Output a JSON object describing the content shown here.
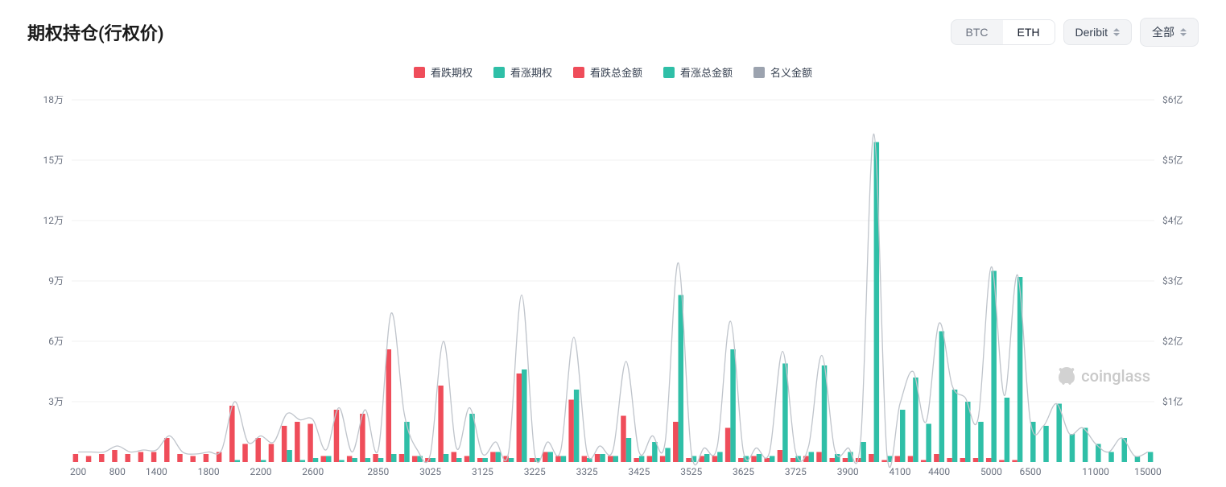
{
  "title": "期权持仓(行权价)",
  "controls": {
    "asset": {
      "options": [
        "BTC",
        "ETH"
      ],
      "selected": "ETH"
    },
    "exchange": {
      "label": "Deribit"
    },
    "scope": {
      "label": "全部"
    }
  },
  "legend": [
    {
      "label": "看跌期权",
      "color": "#ef4d5a"
    },
    {
      "label": "看涨期权",
      "color": "#2fbfa7"
    },
    {
      "label": "看跌总金额",
      "color": "#ef4d5a"
    },
    {
      "label": "看涨总金额",
      "color": "#2fbfa7"
    },
    {
      "label": "名义金额",
      "color": "#9ca3af"
    }
  ],
  "watermark": "coinglass",
  "chart": {
    "type": "bar+line",
    "background_color": "#ffffff",
    "grid_color": "#f0f0f0",
    "axis_label_color": "#6b7280",
    "axis_font_size": 12,
    "bar_gap": 0,
    "y_left": {
      "min": 0,
      "max": 18,
      "step": 3,
      "suffix": "万",
      "ticks": [
        3,
        6,
        9,
        12,
        15,
        18
      ]
    },
    "y_right": {
      "min": 0,
      "max": 6,
      "step": 1,
      "prefix": "$",
      "suffix": "亿",
      "ticks": [
        1,
        2,
        3,
        4,
        5,
        6
      ]
    },
    "x_tick_labels": [
      "200",
      "800",
      "1400",
      "1800",
      "2200",
      "2600",
      "2850",
      "3025",
      "3125",
      "3225",
      "3325",
      "3425",
      "3525",
      "3625",
      "3725",
      "3900",
      "4100",
      "4400",
      "5000",
      "6500",
      "11000",
      "15000"
    ],
    "colors": {
      "put": "#ef4d5a",
      "call": "#2fbfa7",
      "line": "#bfc4cb"
    },
    "series": [
      {
        "x": "200",
        "put": 0.4,
        "call": 0.0,
        "nominal": 0.5
      },
      {
        "x": "400",
        "put": 0.3,
        "call": 0.0,
        "nominal": 0.5
      },
      {
        "x": "600",
        "put": 0.4,
        "call": 0.0,
        "nominal": 0.5
      },
      {
        "x": "800",
        "put": 0.6,
        "call": 0.0,
        "nominal": 0.8
      },
      {
        "x": "1000",
        "put": 0.4,
        "call": 0.0,
        "nominal": 0.5
      },
      {
        "x": "1200",
        "put": 0.5,
        "call": 0.0,
        "nominal": 0.6
      },
      {
        "x": "1400",
        "put": 0.5,
        "call": 0.0,
        "nominal": 0.6
      },
      {
        "x": "1500",
        "put": 1.2,
        "call": 0.0,
        "nominal": 1.3
      },
      {
        "x": "1600",
        "put": 0.4,
        "call": 0.0,
        "nominal": 0.5
      },
      {
        "x": "1700",
        "put": 0.3,
        "call": 0.0,
        "nominal": 0.4
      },
      {
        "x": "1800",
        "put": 0.4,
        "call": 0.0,
        "nominal": 0.5
      },
      {
        "x": "1900",
        "put": 0.5,
        "call": 0.0,
        "nominal": 0.6
      },
      {
        "x": "2000",
        "put": 2.8,
        "call": 0.1,
        "nominal": 3.0
      },
      {
        "x": "2100",
        "put": 0.9,
        "call": 0.0,
        "nominal": 1.0
      },
      {
        "x": "2200",
        "put": 1.2,
        "call": 0.1,
        "nominal": 1.3
      },
      {
        "x": "2300",
        "put": 0.9,
        "call": 0.0,
        "nominal": 1.0
      },
      {
        "x": "2400",
        "put": 1.8,
        "call": 0.6,
        "nominal": 2.4
      },
      {
        "x": "2500",
        "put": 2.0,
        "call": 0.1,
        "nominal": 2.1
      },
      {
        "x": "2600",
        "put": 1.9,
        "call": 0.2,
        "nominal": 2.1
      },
      {
        "x": "2650",
        "put": 0.3,
        "call": 0.3,
        "nominal": 0.6
      },
      {
        "x": "2700",
        "put": 2.6,
        "call": 0.1,
        "nominal": 2.7
      },
      {
        "x": "2750",
        "put": 0.3,
        "call": 0.2,
        "nominal": 0.5
      },
      {
        "x": "2800",
        "put": 2.4,
        "call": 0.2,
        "nominal": 2.6
      },
      {
        "x": "2850",
        "put": 0.4,
        "call": 0.2,
        "nominal": 0.6
      },
      {
        "x": "2900",
        "put": 5.6,
        "call": 0.4,
        "nominal": 7.4
      },
      {
        "x": "2950",
        "put": 0.4,
        "call": 2.0,
        "nominal": 2.4
      },
      {
        "x": "3000",
        "put": 0.3,
        "call": 0.3,
        "nominal": 0.6
      },
      {
        "x": "3025",
        "put": 0.2,
        "call": 0.2,
        "nominal": 0.4
      },
      {
        "x": "3050",
        "put": 3.8,
        "call": 0.4,
        "nominal": 6.0
      },
      {
        "x": "3075",
        "put": 0.5,
        "call": 0.2,
        "nominal": 0.7
      },
      {
        "x": "3100",
        "put": 0.3,
        "call": 2.4,
        "nominal": 2.7
      },
      {
        "x": "3125",
        "put": 0.2,
        "call": 0.2,
        "nominal": 0.4
      },
      {
        "x": "3150",
        "put": 0.5,
        "call": 0.5,
        "nominal": 1.0
      },
      {
        "x": "3175",
        "put": 0.3,
        "call": 0.2,
        "nominal": 0.5
      },
      {
        "x": "3200",
        "put": 4.4,
        "call": 4.6,
        "nominal": 8.3
      },
      {
        "x": "3225",
        "put": 0.2,
        "call": 0.2,
        "nominal": 0.4
      },
      {
        "x": "3250",
        "put": 0.5,
        "call": 0.5,
        "nominal": 1.0
      },
      {
        "x": "3275",
        "put": 0.3,
        "call": 0.3,
        "nominal": 0.6
      },
      {
        "x": "3300",
        "put": 3.1,
        "call": 3.6,
        "nominal": 6.2
      },
      {
        "x": "3325",
        "put": 0.3,
        "call": 0.2,
        "nominal": 0.5
      },
      {
        "x": "3350",
        "put": 0.4,
        "call": 0.4,
        "nominal": 0.8
      },
      {
        "x": "3375",
        "put": 0.3,
        "call": 0.3,
        "nominal": 0.6
      },
      {
        "x": "3400",
        "put": 2.3,
        "call": 1.2,
        "nominal": 5.0
      },
      {
        "x": "3425",
        "put": 0.2,
        "call": 0.3,
        "nominal": 0.5
      },
      {
        "x": "3450",
        "put": 0.3,
        "call": 1.0,
        "nominal": 1.3
      },
      {
        "x": "3475",
        "put": 0.3,
        "call": 0.7,
        "nominal": 1.0
      },
      {
        "x": "3500",
        "put": 2.0,
        "call": 8.3,
        "nominal": 9.9
      },
      {
        "x": "3525",
        "put": 0.2,
        "call": 0.3,
        "nominal": 0.5
      },
      {
        "x": "3550",
        "put": 0.3,
        "call": 0.4,
        "nominal": 0.7
      },
      {
        "x": "3575",
        "put": 0.3,
        "call": 0.5,
        "nominal": 0.8
      },
      {
        "x": "3600",
        "put": 1.7,
        "call": 5.6,
        "nominal": 7.0
      },
      {
        "x": "3625",
        "put": 0.2,
        "call": 0.3,
        "nominal": 0.5
      },
      {
        "x": "3650",
        "put": 0.3,
        "call": 0.4,
        "nominal": 0.7
      },
      {
        "x": "3675",
        "put": 0.2,
        "call": 0.3,
        "nominal": 0.5
      },
      {
        "x": "3700",
        "put": 0.6,
        "call": 4.9,
        "nominal": 5.5
      },
      {
        "x": "3725",
        "put": 0.2,
        "call": 0.3,
        "nominal": 0.5
      },
      {
        "x": "3750",
        "put": 0.3,
        "call": 0.5,
        "nominal": 0.8
      },
      {
        "x": "3800",
        "put": 0.5,
        "call": 4.8,
        "nominal": 5.3
      },
      {
        "x": "3850",
        "put": 0.2,
        "call": 0.4,
        "nominal": 0.6
      },
      {
        "x": "3900",
        "put": 0.2,
        "call": 0.5,
        "nominal": 0.7
      },
      {
        "x": "3950",
        "put": 0.2,
        "call": 1.0,
        "nominal": 1.2
      },
      {
        "x": "4000",
        "put": 0.4,
        "call": 15.9,
        "nominal": 16.3
      },
      {
        "x": "4050",
        "put": 0.1,
        "call": 0.3,
        "nominal": 0.4
      },
      {
        "x": "4100",
        "put": 0.3,
        "call": 2.6,
        "nominal": 2.9
      },
      {
        "x": "4200",
        "put": 0.3,
        "call": 4.2,
        "nominal": 4.5
      },
      {
        "x": "4300",
        "put": 0.1,
        "call": 1.9,
        "nominal": 2.0
      },
      {
        "x": "4400",
        "put": 0.4,
        "call": 6.5,
        "nominal": 6.9
      },
      {
        "x": "4500",
        "put": 0.2,
        "call": 3.6,
        "nominal": 3.8
      },
      {
        "x": "4600",
        "put": 0.2,
        "call": 3.0,
        "nominal": 3.2
      },
      {
        "x": "4800",
        "put": 0.2,
        "call": 2.0,
        "nominal": 2.2
      },
      {
        "x": "5000",
        "put": 0.2,
        "call": 9.5,
        "nominal": 9.7
      },
      {
        "x": "5500",
        "put": 0.1,
        "call": 3.2,
        "nominal": 3.3
      },
      {
        "x": "6000",
        "put": 0.1,
        "call": 9.2,
        "nominal": 9.3
      },
      {
        "x": "6500",
        "put": 0.0,
        "call": 2.0,
        "nominal": 2.0
      },
      {
        "x": "7000",
        "put": 0.0,
        "call": 1.8,
        "nominal": 1.8
      },
      {
        "x": "8000",
        "put": 0.0,
        "call": 2.9,
        "nominal": 2.9
      },
      {
        "x": "9000",
        "put": 0.0,
        "call": 1.4,
        "nominal": 1.4
      },
      {
        "x": "10000",
        "put": 0.0,
        "call": 1.7,
        "nominal": 1.7
      },
      {
        "x": "11000",
        "put": 0.0,
        "call": 0.9,
        "nominal": 0.9
      },
      {
        "x": "12000",
        "put": 0.0,
        "call": 0.5,
        "nominal": 0.5
      },
      {
        "x": "13000",
        "put": 0.0,
        "call": 1.2,
        "nominal": 1.2
      },
      {
        "x": "14000",
        "put": 0.0,
        "call": 0.3,
        "nominal": 0.3
      },
      {
        "x": "15000",
        "put": 0.0,
        "call": 0.5,
        "nominal": 0.5
      }
    ]
  }
}
